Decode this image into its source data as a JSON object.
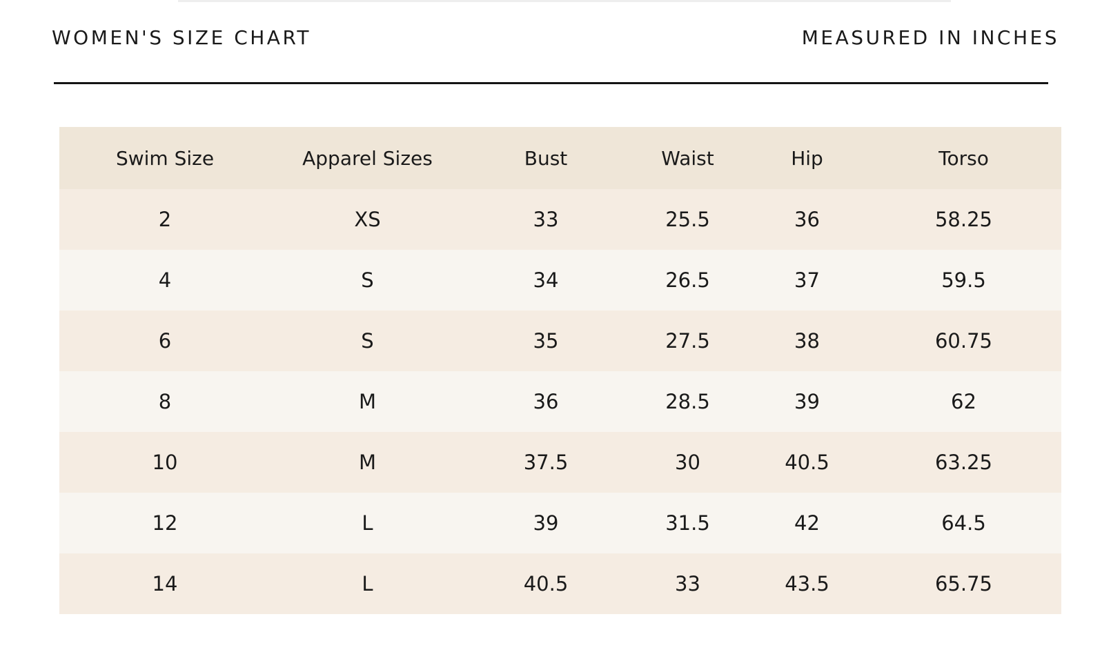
{
  "header": {
    "title": "WOMEN'S SIZE CHART",
    "units": "MEASURED IN INCHES"
  },
  "table": {
    "columns": [
      "Swim Size",
      "Apparel Sizes",
      "Bust",
      "Waist",
      "Hip",
      "Torso"
    ],
    "rows": [
      [
        "2",
        "XS",
        "33",
        "25.5",
        "36",
        "58.25"
      ],
      [
        "4",
        "S",
        "34",
        "26.5",
        "37",
        "59.5"
      ],
      [
        "6",
        "S",
        "35",
        "27.5",
        "38",
        "60.75"
      ],
      [
        "8",
        "M",
        "36",
        "28.5",
        "39",
        "62"
      ],
      [
        "10",
        "M",
        "37.5",
        "30",
        "40.5",
        "63.25"
      ],
      [
        "12",
        "L",
        "39",
        "31.5",
        "42",
        "64.5"
      ],
      [
        "14",
        "L",
        "40.5",
        "33",
        "43.5",
        "65.75"
      ]
    ]
  },
  "colors": {
    "header_row": "#efe6d8",
    "row_tan": "#f5ece2",
    "row_light": "#f8f5f0",
    "divider": "#141414",
    "text": "#1a1a1a"
  }
}
